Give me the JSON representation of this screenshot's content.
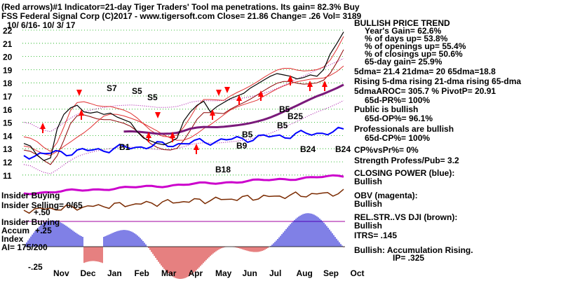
{
  "header": {
    "line1": "(Red arrows)#1 Indicator=21-day Tiger Traders' Tool ma penetrations. Its gain= 82.3% Buy",
    "line2": "FSS   Federal Signal Corp   (C)2017 - www.tigersoft.com     Close=  21.86   Change= .26  Vol= 3189",
    "date_range": "10/ 6/16-  10/ 3/ 17"
  },
  "colors": {
    "price": "#000000",
    "closing_power": "#0000ff",
    "obv": "#cc00cc",
    "rel_str": "#7a2a00",
    "ma65": "#7a1a7a",
    "buy_arrow": "#ff0000",
    "accum_pos": "#0000cc",
    "accum_neg": "#cc0000",
    "grid": "#00aa00",
    "dotted_band": "#a000a0",
    "ma_fast": "#8b0000",
    "ma_mid": "#e03030"
  },
  "chart_data": {
    "type": "line",
    "title": "Federal Signal Corp",
    "ylim": [
      10.2,
      22.3
    ],
    "y_ticks": [
      "22",
      "21",
      "20",
      "19",
      "18",
      "17",
      "16",
      "15",
      "14",
      "13",
      "12",
      "11"
    ],
    "x_labels": [
      "Nov",
      "Dec",
      "Jan",
      "Feb",
      "Mar",
      "Apr",
      "May",
      "Jun",
      "Jul",
      "Aug",
      "Sep",
      "Oct"
    ],
    "price_close": [
      13.4,
      13.2,
      12.5,
      12.1,
      12.3,
      14.5,
      15.6,
      16.1,
      16.3,
      15.8,
      15.7,
      15.8,
      15.6,
      15.7,
      15.4,
      15.2,
      15.0,
      14.3,
      13.8,
      13.6,
      13.4,
      13.3,
      13.5,
      13.8,
      15.1,
      15.8,
      16.3,
      16.6,
      15.8,
      16.2,
      16.5,
      16.8,
      17.0,
      17.2,
      17.6,
      17.9,
      18.2,
      18.5,
      18.7,
      18.6,
      18.5,
      18.3,
      18.4,
      18.6,
      18.5,
      19.0,
      20.2,
      21.0,
      21.86
    ],
    "annotations": [
      "S7",
      "S5",
      "S5",
      "B1",
      "B9",
      "B25",
      "B5",
      "B5",
      "B5",
      "B18",
      "B24",
      "B24"
    ],
    "panels": [
      "Insider Buying",
      "Insider Selling= 0/65",
      "Insider Buying",
      "Accum",
      "Index",
      "AI= 175/200"
    ],
    "accum_ticks": [
      "+.50",
      "+.25",
      "-.25"
    ]
  },
  "side": {
    "trend_title": "BULLISH PRICE TREND",
    "lines": [
      "Year's Gain= 62.6%",
      "% of days up= 53.8%",
      "% of openings up= 55.4%",
      "% of closings up= 50.6%",
      "65-day gain= 25.9%",
      "5dma= 21.4  21dma= 20  65dma=18.8",
      "Rising 5-dma rising 21-dma rising 65-dma",
      "5dmaAROC= 305.7  %   PivotP= 20.91",
      "65d-PR%= 100%",
      "Public is bullish",
      "65d-OP%= 96.1%",
      "Professionals are bullish",
      "65d-CP%= 100%",
      "CP%vsPr%=  0%",
      "Strength Profess/Pub= 3.2",
      "CLOSING POWER (blue):",
      "Bullish",
      "OBV (magenta):",
      "Bullish",
      "REL.STR..VS DJI (brown):",
      "Bullish",
      "ITRS= .145",
      "Bullish: Accumulation Rising.",
      "IP=  .325"
    ]
  }
}
